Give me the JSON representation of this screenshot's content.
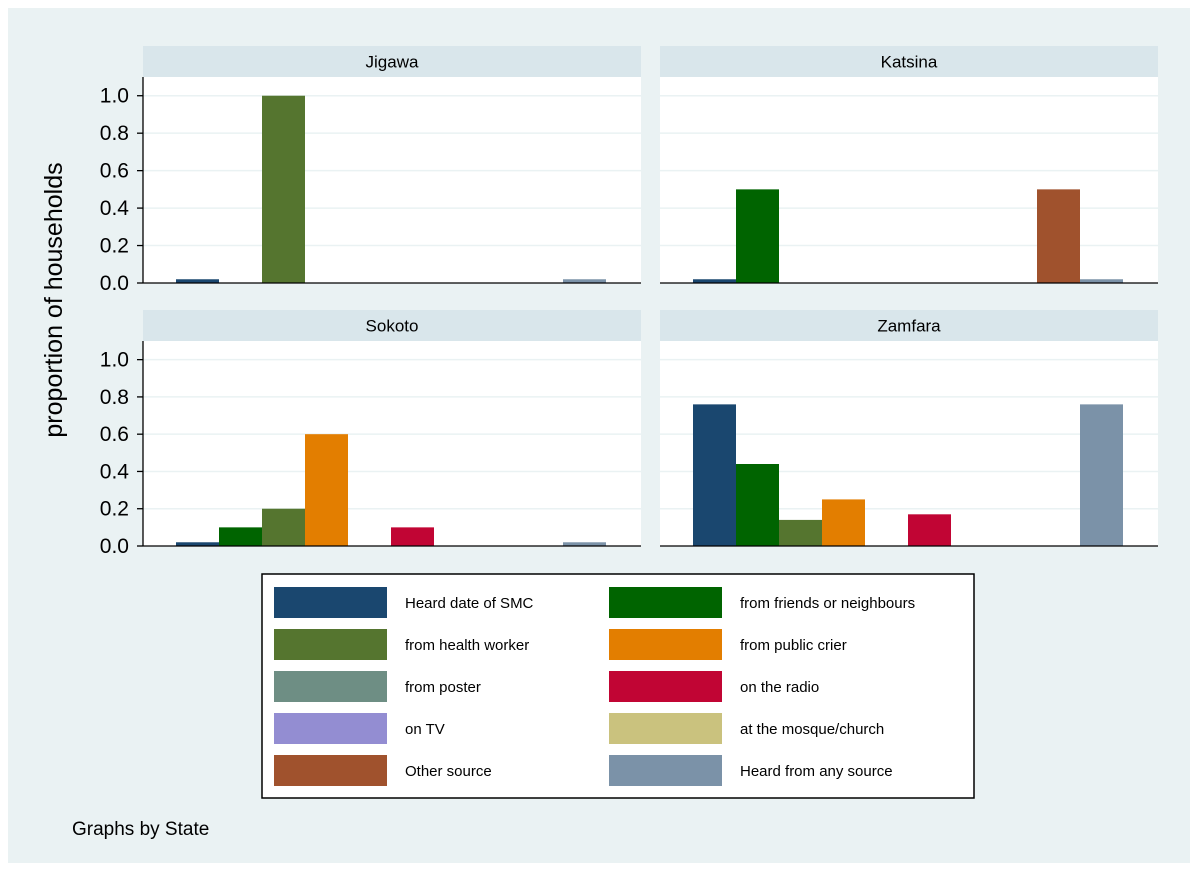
{
  "chart_data": {
    "type": "bar",
    "ylabel": "proportion of households",
    "ylim": [
      0,
      1.1
    ],
    "yticks": [
      "0.0",
      "0.2",
      "0.4",
      "0.6",
      "0.8",
      "1.0"
    ],
    "grid": true,
    "legend_position": "bottom",
    "note": "Graphs by State",
    "series": [
      {
        "name": "Heard date of SMC",
        "color": "#1a476f"
      },
      {
        "name": "from friends or neighbours",
        "color": "#006400"
      },
      {
        "name": "from health worker",
        "color": "#55752f"
      },
      {
        "name": "from public crier",
        "color": "#e37e00"
      },
      {
        "name": "from poster",
        "color": "#6e8e84"
      },
      {
        "name": "on the radio",
        "color": "#c10534"
      },
      {
        "name": "on TV",
        "color": "#938dd2"
      },
      {
        "name": "at the mosque/church",
        "color": "#cac27e"
      },
      {
        "name": "Other source",
        "color": "#a0522d"
      },
      {
        "name": "Heard from any source",
        "color": "#7b92a8"
      }
    ],
    "panels": [
      {
        "title": "Jigawa",
        "values": [
          0.02,
          0,
          1.0,
          0,
          0,
          0,
          0,
          0,
          0,
          0.02
        ]
      },
      {
        "title": "Katsina",
        "values": [
          0.02,
          0.5,
          0,
          0,
          0,
          0,
          0,
          0,
          0.5,
          0.02
        ]
      },
      {
        "title": "Sokoto",
        "values": [
          0.02,
          0.1,
          0.2,
          0.6,
          0,
          0.1,
          0,
          0,
          0,
          0.02
        ]
      },
      {
        "title": "Zamfara",
        "values": [
          0.76,
          0.44,
          0.14,
          0.25,
          0,
          0.17,
          0,
          0,
          0,
          0.76
        ]
      }
    ]
  }
}
